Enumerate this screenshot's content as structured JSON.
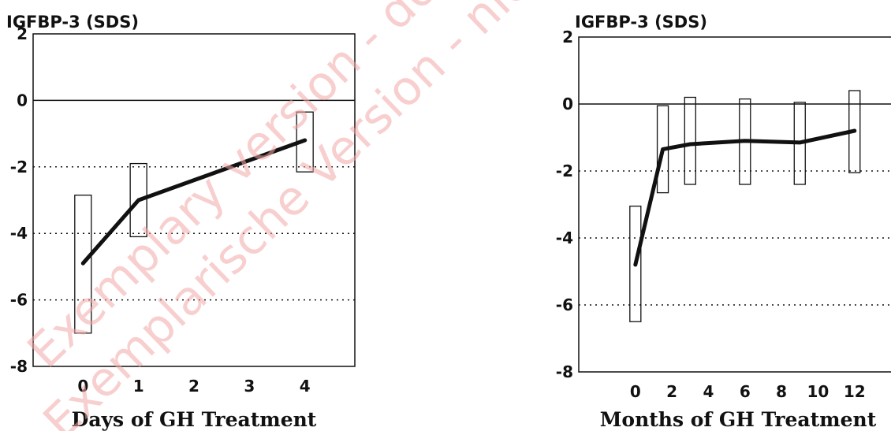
{
  "watermark": {
    "line1": "Exemplary version - do not copy",
    "line2": "Exemplarische Version - nicht kopieren",
    "color": "#f4a8a8"
  },
  "chart_data": [
    {
      "type": "line",
      "ylabel": "IGFBP-3 (SDS)",
      "xlabel": "Days of GH Treatment",
      "ylim": [
        -8,
        2
      ],
      "yticks": [
        2,
        0,
        -2,
        -4,
        -6,
        -8
      ],
      "xticks": [
        0,
        1,
        2,
        3,
        4
      ],
      "xlim": [
        -0.9,
        4.9
      ],
      "reference_line": 0,
      "dotted_gridlines": [
        -2,
        -4,
        -6
      ],
      "series": [
        {
          "x": [
            0,
            1,
            4
          ],
          "y": [
            -4.9,
            -3.0,
            -1.2
          ]
        }
      ],
      "ranges": [
        {
          "x": 0,
          "low": -7.0,
          "high": -2.85
        },
        {
          "x": 1,
          "low": -4.1,
          "high": -1.9
        },
        {
          "x": 4,
          "low": -2.15,
          "high": -0.35
        }
      ]
    },
    {
      "type": "line",
      "ylabel": "IGFBP-3 (SDS)",
      "xlabel": "Months of GH Treatment",
      "ylim": [
        -8,
        2
      ],
      "yticks": [
        2,
        0,
        -2,
        -4,
        -6,
        -8
      ],
      "xticks": [
        0,
        2,
        4,
        6,
        8,
        10,
        12
      ],
      "xlim": [
        -3.1,
        14.6
      ],
      "reference_line": 0,
      "dotted_gridlines": [
        -2,
        -4,
        -6
      ],
      "series": [
        {
          "x": [
            0,
            1.5,
            3,
            6,
            9,
            12
          ],
          "y": [
            -4.8,
            -1.35,
            -1.2,
            -1.1,
            -1.15,
            -0.8
          ]
        }
      ],
      "ranges": [
        {
          "x": 0,
          "low": -6.5,
          "high": -3.05
        },
        {
          "x": 1.5,
          "low": -2.65,
          "high": -0.05
        },
        {
          "x": 3,
          "low": -2.4,
          "high": 0.2
        },
        {
          "x": 6,
          "low": -2.4,
          "high": 0.15
        },
        {
          "x": 9,
          "low": -2.4,
          "high": 0.05
        },
        {
          "x": 12,
          "low": -2.05,
          "high": 0.4
        }
      ]
    }
  ]
}
